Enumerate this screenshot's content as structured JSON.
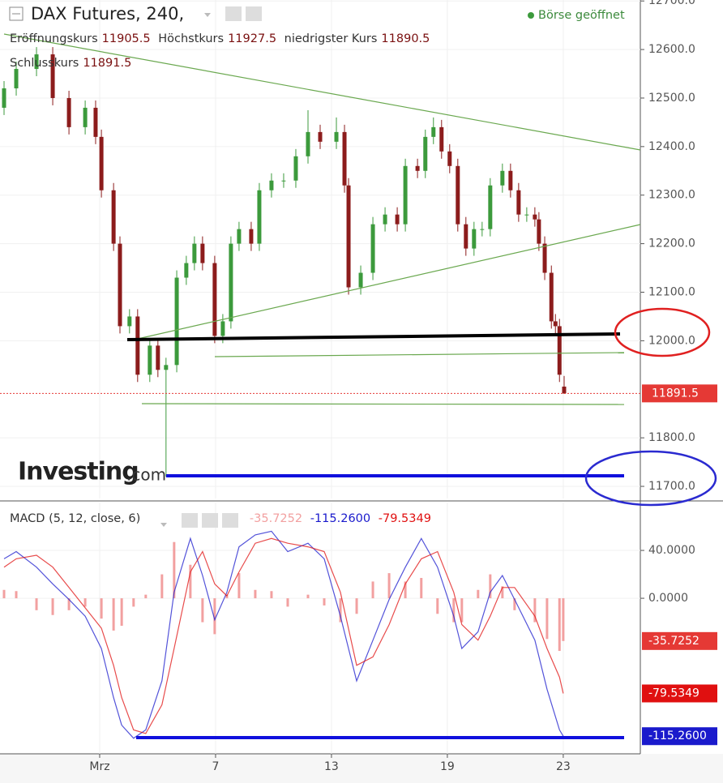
{
  "header": {
    "title": "DAX Futures, 240,",
    "status": "Börse geöffnet",
    "ohlc_labels": [
      "Eröffnungskurs",
      "Höchstkurs",
      "niedrigster Kurs",
      "Schlusskurs"
    ],
    "watermark": "Investing",
    "watermark_suffix": ".com"
  },
  "chart_data": [
    {
      "type": "candlestick",
      "x": [
        -3.3,
        -2.88,
        -2.18,
        -1.62,
        -1.06,
        -0.5,
        -0.14,
        0.06,
        0.48,
        0.7,
        1.03,
        1.31,
        1.73,
        2.01,
        2.29,
        2.66,
        2.99,
        3.27,
        3.55,
        3.97,
        4.25,
        4.53,
        4.81,
        5.23,
        5.51,
        5.93,
        6.35,
        6.77,
        7.19,
        7.61,
        8.17,
        8.45,
        8.59,
        9.01,
        9.43,
        9.85,
        10.27,
        10.55,
        10.97,
        11.24,
        11.52,
        11.8,
        12.08,
        12.36,
        12.64,
        12.92,
        13.2,
        13.48,
        13.9,
        14.18,
        14.46,
        14.74,
        15.02,
        15.16,
        15.36,
        15.59,
        15.73,
        15.87,
        16.03
      ],
      "open": [
        12480,
        12520,
        12560,
        12590,
        12500,
        12440,
        12480,
        12420,
        12310,
        12200,
        12030,
        12050,
        11930,
        11990,
        11940,
        11950,
        12130,
        12160,
        12200,
        12160,
        12010,
        12040,
        12200,
        12230,
        12200,
        12310,
        12330,
        12330,
        12380,
        12430,
        12410,
        12430,
        12320,
        12110,
        12140,
        12240,
        12260,
        12240,
        12360,
        12350,
        12420,
        12440,
        12390,
        12360,
        12240,
        12190,
        12230,
        12230,
        12320,
        12350,
        12310,
        12260,
        12260,
        12250,
        12200,
        12140,
        12040,
        12030,
        11905.5
      ],
      "high": [
        12535,
        12575,
        12605,
        12605,
        12515,
        12495,
        12495,
        12435,
        12325,
        12215,
        12065,
        12065,
        12005,
        12005,
        11965,
        12145,
        12175,
        12215,
        12215,
        12175,
        12055,
        12215,
        12245,
        12245,
        12325,
        12345,
        12345,
        12395,
        12475,
        12445,
        12460,
        12445,
        12335,
        12155,
        12255,
        12275,
        12275,
        12375,
        12375,
        12435,
        12460,
        12455,
        12405,
        12375,
        12255,
        12245,
        12245,
        12335,
        12365,
        12365,
        12325,
        12275,
        12275,
        12265,
        12215,
        12155,
        12055,
        12045,
        11927.5
      ],
      "low": [
        12465,
        12505,
        12545,
        12485,
        12425,
        12425,
        12405,
        12295,
        12185,
        12015,
        12015,
        11915,
        11915,
        11925,
        11720,
        11935,
        12115,
        12145,
        12145,
        11995,
        11995,
        12025,
        12185,
        12185,
        12185,
        12295,
        12315,
        12315,
        12365,
        12395,
        12395,
        12305,
        12095,
        12095,
        12125,
        12225,
        12225,
        12225,
        12335,
        12335,
        12405,
        12375,
        12345,
        12225,
        12175,
        12175,
        12215,
        12215,
        12305,
        12295,
        12245,
        12245,
        12235,
        12185,
        12125,
        12025,
        12015,
        11915,
        11890.5
      ],
      "close": [
        12520,
        12560,
        12590,
        12500,
        12440,
        12480,
        12420,
        12310,
        12200,
        12030,
        12050,
        11930,
        11990,
        11940,
        11950,
        12130,
        12160,
        12200,
        12160,
        12010,
        12040,
        12200,
        12230,
        12200,
        12310,
        12330,
        12330,
        12380,
        12430,
        12410,
        12430,
        12320,
        12110,
        12140,
        12240,
        12260,
        12240,
        12360,
        12350,
        12420,
        12440,
        12390,
        12360,
        12240,
        12190,
        12230,
        12230,
        12320,
        12350,
        12310,
        12260,
        12260,
        12250,
        12200,
        12140,
        12040,
        12030,
        11930,
        11891.5
      ],
      "up_color": "#3c9a3c",
      "down_color": "#8c1c1c",
      "last_price_color": "#e53935",
      "xlim": [
        -3.44,
        18.66
      ],
      "xticks": [
        {
          "value": 0,
          "label": "Mrz"
        },
        {
          "value": 4,
          "label": "7"
        },
        {
          "value": 8,
          "label": "13"
        },
        {
          "value": 12,
          "label": "19"
        },
        {
          "value": 16,
          "label": "23"
        }
      ],
      "ylim": [
        11675,
        12702
      ],
      "yticks": [
        {
          "value": 12700,
          "label": "12700.0"
        },
        {
          "value": 12600,
          "label": "12600.0"
        },
        {
          "value": 12500,
          "label": "12500.0"
        },
        {
          "value": 12400,
          "label": "12400.0"
        },
        {
          "value": 12300,
          "label": "12300.0"
        },
        {
          "value": 12200,
          "label": "12200.0"
        },
        {
          "value": 12100,
          "label": "12100.0"
        },
        {
          "value": 12000,
          "label": "12000.0"
        },
        {
          "value": 11800,
          "label": "11800.0"
        },
        {
          "value": 11700,
          "label": "11700.0"
        }
      ],
      "grid": true
    },
    {
      "type": "macd",
      "title": "MACD (5, 12, close, 6)",
      "x": [
        -3.3,
        -2.88,
        -2.18,
        -1.62,
        -1.06,
        -0.5,
        0.06,
        0.48,
        0.76,
        1.17,
        1.59,
        2.15,
        2.57,
        3.13,
        3.55,
        3.97,
        4.39,
        4.81,
        5.37,
        5.93,
        6.49,
        7.19,
        7.75,
        8.31,
        8.87,
        9.43,
        9.99,
        10.55,
        11.1,
        11.66,
        12.22,
        12.5,
        13.06,
        13.48,
        13.9,
        14.32,
        15.02,
        15.44,
        15.87,
        16.0
      ],
      "xlim": [
        -3.44,
        18.66
      ],
      "ylim": [
        -130,
        80
      ],
      "yticks": [
        {
          "value": 40,
          "label": "40.0000"
        },
        {
          "value": 0,
          "label": "0.0000"
        }
      ],
      "grid": true,
      "series": [
        {
          "style": "histogram",
          "color": "#f2a0a0",
          "last_label": "-35.7252",
          "values": [
            7,
            6,
            -10,
            -14,
            -10,
            -7,
            -17,
            -27,
            -23,
            -7,
            3,
            20,
            47,
            28,
            -20,
            -30,
            3,
            21,
            7,
            6,
            -7,
            3,
            -6,
            -20,
            -13,
            14,
            21,
            14,
            17,
            -13,
            -20,
            -20,
            7,
            20,
            10,
            -10,
            -20,
            -34,
            -44,
            -35.7252
          ]
        },
        {
          "style": "line",
          "color": "#1a1acc",
          "last_label": "-115.2600",
          "values": [
            33,
            39,
            26,
            12,
            -1,
            -15,
            -42,
            -83,
            -106,
            -117,
            -110,
            -69,
            5,
            50,
            19,
            -18,
            5,
            43,
            53,
            56,
            39,
            46,
            33,
            -15,
            -69,
            -35,
            -1,
            26,
            50,
            26,
            -15,
            -42,
            -28,
            5,
            19,
            -1,
            -35,
            -76,
            -110,
            -115.26
          ]
        },
        {
          "style": "line",
          "color": "#e01010",
          "last_label": "-79.5349",
          "values": [
            26,
            33,
            36,
            26,
            9,
            -8,
            -25,
            -56,
            -83,
            -110,
            -113,
            -89,
            -42,
            22,
            39,
            12,
            2,
            22,
            46,
            50,
            46,
            43,
            39,
            5,
            -56,
            -49,
            -22,
            12,
            33,
            39,
            5,
            -22,
            -35,
            -15,
            9,
            9,
            -15,
            -42,
            -66,
            -79.5349
          ]
        }
      ]
    }
  ]
}
